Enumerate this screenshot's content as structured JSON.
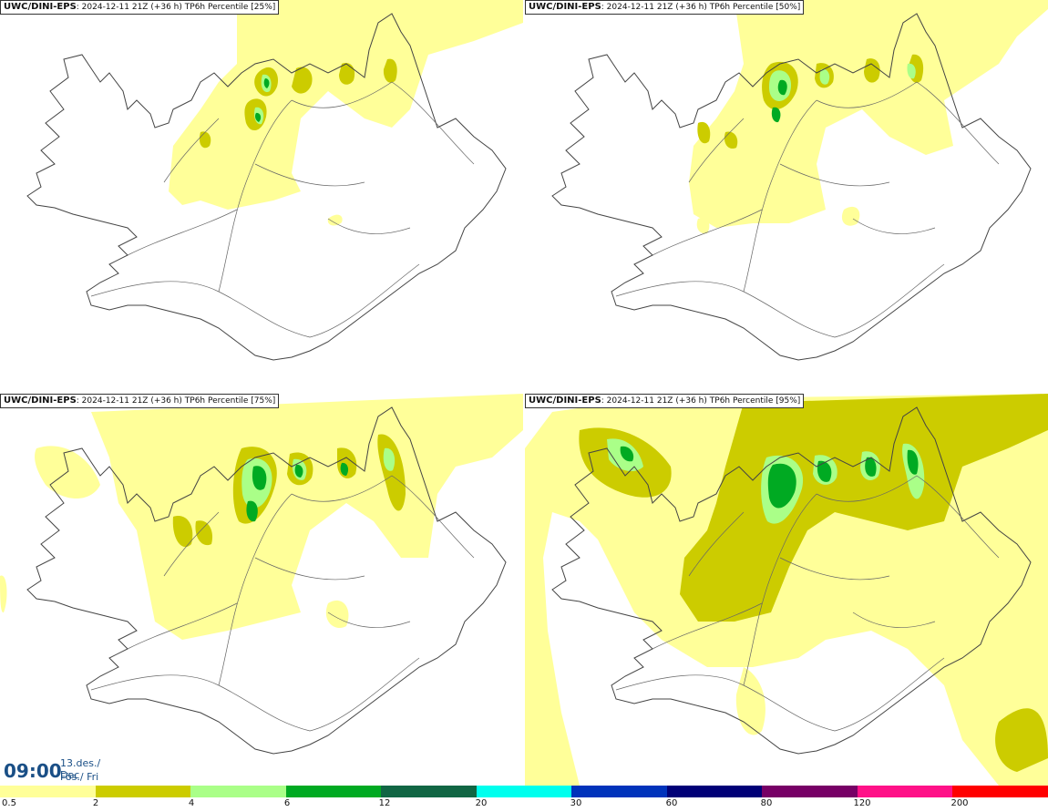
{
  "panels": [
    {
      "model": "UWC/DINI-EPS",
      "run_info": "2024-12-11 21Z (+36 h)",
      "field": "TP6h Percentile [25%]",
      "level": 25
    },
    {
      "model": "UWC/DINI-EPS",
      "run_info": "2024-12-11 21Z (+36 h)",
      "field": "TP6h Percentile [50%]",
      "level": 50
    },
    {
      "model": "UWC/DINI-EPS",
      "run_info": "2024-12-11 21Z (+36 h)",
      "field": "TP6h Percentile [75%]",
      "level": 75
    },
    {
      "model": "UWC/DINI-EPS",
      "run_info": "2024-12-11 21Z (+36 h)",
      "field": "TP6h Percentile [95%]",
      "level": 95
    }
  ],
  "valid_time": {
    "clock": "09:00",
    "date": "13.des./ Dec",
    "day": "Fös./ Fri"
  },
  "legend": {
    "labels": [
      "0.5",
      "2",
      "4",
      "6",
      "12",
      "20",
      "30",
      "60",
      "80",
      "120",
      "200"
    ],
    "colors": [
      "#ffff99",
      "#cccc00",
      "#aaff88",
      "#00aa22",
      "#116644",
      "#00ffee",
      "#0033bb",
      "#000077",
      "#770066",
      "#ff1188",
      "#ff0000"
    ]
  },
  "map_colors": {
    "light": "#ffff99",
    "medium": "#cccc00",
    "green_light": "#aaff88",
    "green": "#00aa22",
    "outline": "#444444"
  }
}
